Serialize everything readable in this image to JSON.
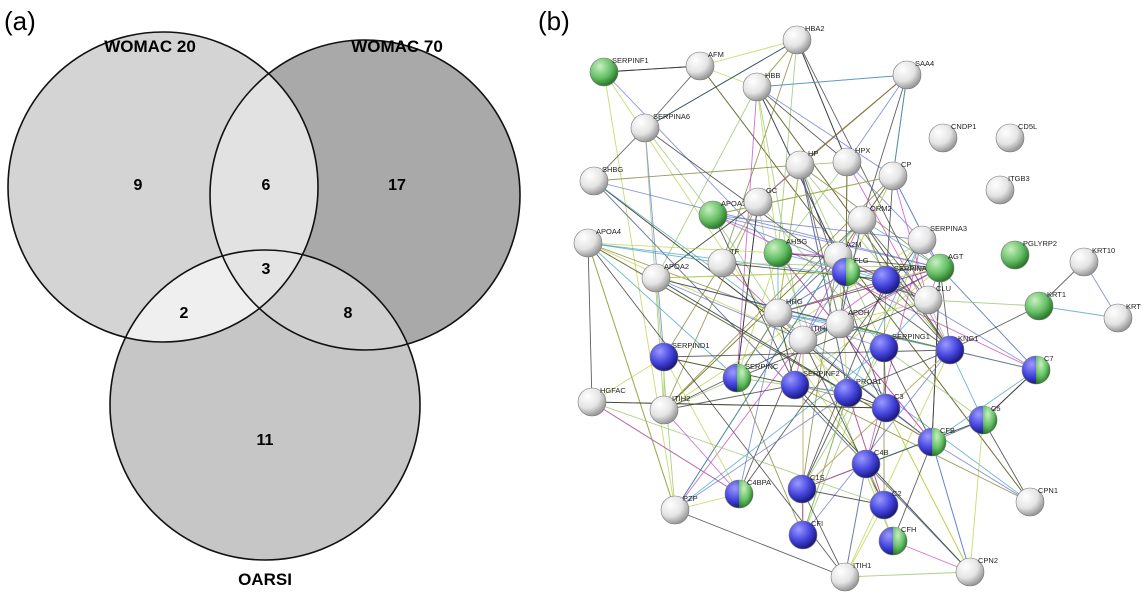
{
  "panels": {
    "a": {
      "label": "(a)",
      "sets": [
        "WOMAC 20",
        "WOMAC 70",
        "OARSI"
      ],
      "regions": [
        9,
        17,
        11,
        6,
        2,
        8,
        3
      ]
    },
    "b": {
      "label": "(b)",
      "nodes": [
        "SERPINF1",
        "AFM",
        "HBA2",
        "HBB",
        "SAA4",
        "SERPINA6",
        "CNDP1",
        "CD5L",
        "SHBG",
        "HP",
        "HPX",
        "CP",
        "ITGB3",
        "APOA1",
        "GC",
        "ORM2",
        "SERPINA3",
        "APOA4",
        "AHSG",
        "A2M",
        "AGT",
        "PGLYRP2",
        "KRT10",
        "TF",
        "APOA2",
        "FLG",
        "SERPINA",
        "CLU",
        "KRT1",
        "KRT",
        "HRG",
        "ITIH4",
        "APOH",
        "SERPING1",
        "KNG1",
        "SERPIND1",
        "SERPINC",
        "SERPINF2",
        "PROS1",
        "C7",
        "C3",
        "C5",
        "HGFAC",
        "ITIH2",
        "CFB",
        "C4B",
        "C4BPA",
        "C1S",
        "C2",
        "CPN1",
        "PZP",
        "CFI",
        "CFH",
        "ITIH1",
        "CPN2"
      ]
    }
  }
}
